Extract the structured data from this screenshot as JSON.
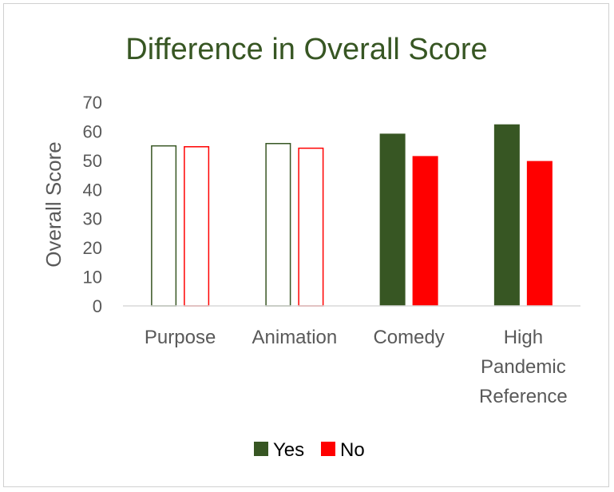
{
  "chart_data": {
    "type": "bar",
    "title": "Difference in Overall Score",
    "xlabel": "",
    "ylabel": "Overall Score",
    "ylim": [
      0,
      70
    ],
    "yticks": [
      0,
      10,
      20,
      30,
      40,
      50,
      60,
      70
    ],
    "grid": false,
    "legend_position": "bottom",
    "categories": [
      "Purpose",
      "Animation",
      "Comedy",
      "High Pandemic Reference"
    ],
    "category_lines": [
      [
        "Purpose"
      ],
      [
        "Animation"
      ],
      [
        "Comedy"
      ],
      [
        "High",
        "Pandemic",
        "Reference"
      ]
    ],
    "filled": [
      false,
      false,
      true,
      true
    ],
    "series": [
      {
        "name": "Yes",
        "color": "#375623",
        "values": [
          55,
          55.8,
          59.2,
          62.4
        ]
      },
      {
        "name": "No",
        "color": "#ff0000",
        "values": [
          54.7,
          54.2,
          51.5,
          49.8
        ]
      }
    ],
    "colors": {
      "title": "#375623",
      "axis": "#d9d9d9",
      "text": "#595959"
    }
  }
}
